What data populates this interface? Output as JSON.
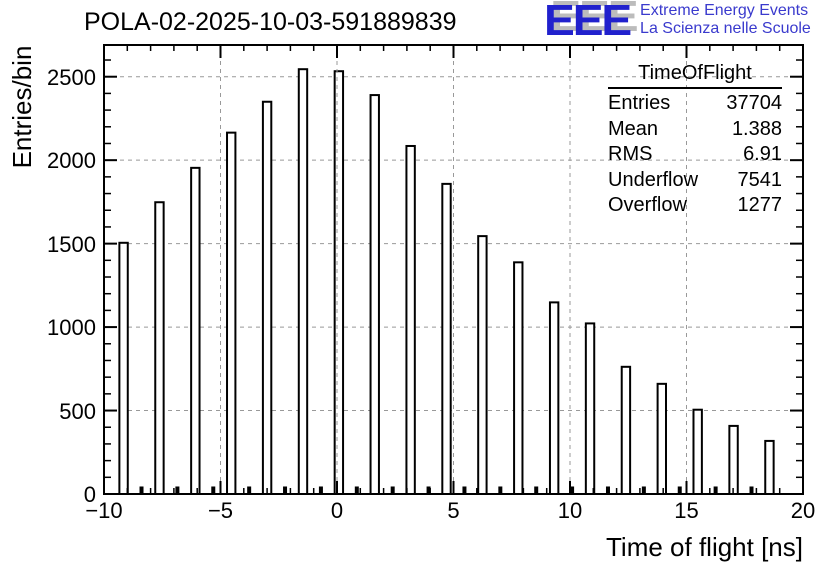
{
  "header": {
    "title": "POLA-02-2025-10-03-591889839",
    "logo": {
      "acronym": "EEE",
      "line1": "Extreme Energy Events",
      "line2": "La Scienza nelle Scuole",
      "blue": "#2121cd",
      "text_blue": "#3a3acd",
      "shadow_gray": "#bcbcbc"
    }
  },
  "stats": {
    "title": "TimeOfFlight",
    "rows": [
      {
        "label": "Entries",
        "value": "37704"
      },
      {
        "label": "Mean",
        "value": "1.388"
      },
      {
        "label": "RMS",
        "value": "6.91"
      },
      {
        "label": "Underflow",
        "value": "7541"
      },
      {
        "label": "Overflow",
        "value": "1277"
      }
    ]
  },
  "colors": {
    "grid": "#999999",
    "axis": "#000000",
    "bar_fill": "#ffffff",
    "bar_stroke": "#000000"
  },
  "chart_data": {
    "type": "bar",
    "title": "POLA-02-2025-10-03-591889839",
    "xlabel": "Time of flight [ns]",
    "ylabel": "Entries/bin",
    "xlim": [
      -10,
      20
    ],
    "ylim": [
      0,
      2690
    ],
    "grid": "dashed",
    "legend": "none",
    "x_major_ticks": [
      -10,
      -5,
      0,
      5,
      10,
      15,
      20
    ],
    "x_tick_labels": [
      "−10",
      "−5",
      "0",
      "5",
      "10",
      "15",
      "20"
    ],
    "x_minor_step": 1,
    "y_major_ticks": [
      0,
      500,
      1000,
      1500,
      2000,
      2500
    ],
    "y_tick_labels": [
      "0",
      "500",
      "1000",
      "1500",
      "2000",
      "2500"
    ],
    "y_minor_step": 100,
    "bar_width_ns": 0.36,
    "main_peaks": {
      "x": [
        -9.16,
        -7.62,
        -6.08,
        -4.54,
        -3.0,
        -1.46,
        0.08,
        1.62,
        3.16,
        4.7,
        6.24,
        7.78,
        9.32,
        10.86,
        12.4,
        13.94,
        15.48,
        17.02,
        18.56
      ],
      "values": [
        1505,
        1748,
        1954,
        2165,
        2350,
        2545,
        2533,
        2390,
        2085,
        1858,
        1545,
        1388,
        1148,
        1022,
        762,
        660,
        505,
        408,
        318
      ]
    },
    "minor_peaks": {
      "x": [
        -8.39,
        -6.85,
        -5.31,
        -3.77,
        -2.23,
        -0.69,
        0.85,
        2.39,
        3.93,
        5.47,
        7.01,
        8.55,
        10.09,
        11.63,
        13.17,
        14.71,
        16.25,
        17.79
      ],
      "values": [
        45,
        45,
        45,
        45,
        45,
        45,
        45,
        45,
        45,
        45,
        45,
        45,
        45,
        45,
        45,
        45,
        45,
        45
      ]
    }
  }
}
